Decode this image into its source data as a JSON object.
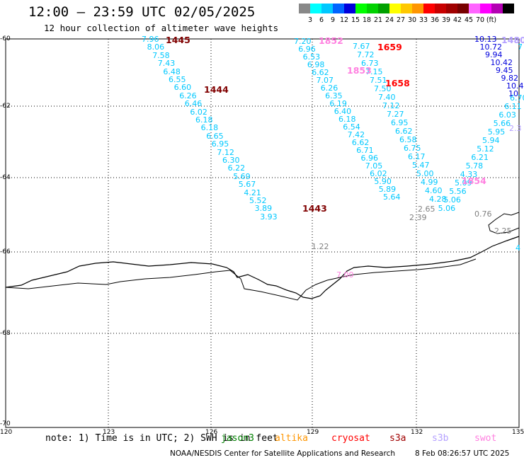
{
  "title": "12:00 – 23:59 UTC 02/05/2025",
  "subtitle": "12 hour collection of altimeter wave heights",
  "legend": {
    "colors": [
      "#888888",
      "#00ffff",
      "#00c8ff",
      "#0064ff",
      "#0000dc",
      "#00ff00",
      "#00d200",
      "#00a000",
      "#ffff00",
      "#ffc800",
      "#ff9600",
      "#ff0000",
      "#c80000",
      "#a00000",
      "#780000",
      "#ff64ff",
      "#ff00ff",
      "#b400b4",
      "#000000"
    ],
    "labels": [
      "3",
      "6",
      "9",
      "12",
      "15",
      "18",
      "21",
      "24",
      "27",
      "30",
      "33",
      "36",
      "39",
      "42",
      "45",
      "70",
      "(ft)"
    ]
  },
  "axes": {
    "lat_labels": [
      "-60",
      "-62",
      "-64",
      "-66",
      "-68",
      "-70"
    ],
    "lon_labels": [
      "120",
      "123",
      "126",
      "129",
      "132",
      "135"
    ]
  },
  "tracks": [
    {
      "color": "#00c8ff",
      "points": [
        {
          "v": "7.96"
        },
        {
          "v": "8.06"
        },
        {
          "v": "7.58"
        },
        {
          "v": "7.43"
        },
        {
          "v": "6.48"
        },
        {
          "v": "6.55"
        },
        {
          "v": "6.60"
        },
        {
          "v": "6.26"
        },
        {
          "v": "6.46"
        },
        {
          "v": "6.02"
        },
        {
          "v": "6.18"
        },
        {
          "v": "6.18"
        },
        {
          "v": "6.65"
        },
        {
          "v": "6.95"
        },
        {
          "v": "7.12"
        },
        {
          "v": "6.30"
        },
        {
          "v": "6.22"
        },
        {
          "v": "5.69"
        },
        {
          "v": "5.67"
        },
        {
          "v": "4.21"
        },
        {
          "v": "5.52"
        },
        {
          "v": "3.89"
        },
        {
          "v": "3.93"
        }
      ]
    },
    {
      "color": "#00c8ff",
      "points": [
        {
          "v": "7.20"
        },
        {
          "v": "6.96"
        },
        {
          "v": "6.53"
        },
        {
          "v": "6.98"
        },
        {
          "v": "6.62"
        },
        {
          "v": "7.07"
        },
        {
          "v": "6.26"
        },
        {
          "v": "6.35"
        },
        {
          "v": "6.19"
        },
        {
          "v": "6.40"
        },
        {
          "v": "6.18"
        },
        {
          "v": "6.54"
        },
        {
          "v": "7.42"
        },
        {
          "v": "6.62"
        },
        {
          "v": "6.71"
        },
        {
          "v": "6.96"
        },
        {
          "v": "7.05"
        },
        {
          "v": "6.02"
        },
        {
          "v": "5.90"
        },
        {
          "v": "5.89"
        },
        {
          "v": "5.64"
        }
      ]
    },
    {
      "color": "#00c8ff",
      "points": [
        {
          "v": "7.67"
        },
        {
          "v": "7.72"
        },
        {
          "v": "6.73"
        },
        {
          "v": "7.15"
        },
        {
          "v": "7.51"
        },
        {
          "v": "7.50"
        },
        {
          "v": "7.40"
        },
        {
          "v": "7.12"
        },
        {
          "v": "7.27"
        },
        {
          "v": "6.95"
        },
        {
          "v": "6.62"
        },
        {
          "v": "6.58"
        },
        {
          "v": "6.75"
        },
        {
          "v": "6.17"
        },
        {
          "v": "5.47"
        },
        {
          "v": "5.00"
        },
        {
          "v": "4.99"
        },
        {
          "v": "4.60"
        },
        {
          "v": "4.28"
        }
      ]
    },
    {
      "color": "#00c8ff",
      "points": [
        {
          "v": "6.70"
        },
        {
          "v": "6.11"
        },
        {
          "v": "6.03"
        },
        {
          "v": "5.66"
        },
        {
          "v": "5.95"
        },
        {
          "v": "5.94"
        },
        {
          "v": "5.12"
        },
        {
          "v": "6.21"
        },
        {
          "v": "5.78"
        },
        {
          "v": "4.33"
        },
        {
          "v": "5.09"
        },
        {
          "v": "5.56"
        },
        {
          "v": "5.06"
        },
        {
          "v": "5.06"
        }
      ]
    },
    {
      "color": "#0000dc",
      "points": [
        {
          "v": "10.13"
        },
        {
          "v": "10.72"
        },
        {
          "v": "9.94"
        },
        {
          "v": "10.42"
        },
        {
          "v": "9.45"
        },
        {
          "v": "9.82"
        },
        {
          "v": "10.4"
        },
        {
          "v": "10"
        }
      ]
    },
    {
      "color": "#808080",
      "points": [
        {
          "v": "2.65"
        },
        {
          "v": "2.39"
        },
        {
          "v": "0.76"
        },
        {
          "v": "2.25"
        },
        {
          "v": "1.22"
        }
      ]
    }
  ],
  "times": [
    {
      "t": "1445",
      "color": "#800000"
    },
    {
      "t": "1444",
      "color": "#800000"
    },
    {
      "t": "1443",
      "color": "#800000"
    },
    {
      "t": "1852",
      "color": "#ff80e0"
    },
    {
      "t": "1853",
      "color": "#ff80e0"
    },
    {
      "t": "1854",
      "color": "#ff80e0"
    },
    {
      "t": "1659",
      "color": "#ff0000"
    },
    {
      "t": "1658",
      "color": "#ff0000"
    },
    {
      "t": "1480",
      "color": "#b4a0ff"
    }
  ],
  "misc_values": [
    {
      "v": "7.00",
      "color": "#ff80e0"
    },
    {
      "v": "2.3",
      "color": "#b4a0ff"
    },
    {
      "v": "4",
      "color": "#00c8ff"
    },
    {
      "v": "7",
      "color": "#00c8ff"
    }
  ],
  "note": "note: 1) Time is in UTC; 2) SWH is in feet",
  "satellites": [
    {
      "name": "jason3",
      "color": "#008000"
    },
    {
      "name": "altika",
      "color": "#ff9600"
    },
    {
      "name": "cryosat",
      "color": "#ff0000"
    },
    {
      "name": "s3a",
      "color": "#a00000"
    },
    {
      "name": "s3b",
      "color": "#b4a0ff"
    },
    {
      "name": "swot",
      "color": "#ff80e0"
    }
  ],
  "credit": "NOAA/NESDIS Center for Satellite Applications and Research",
  "timestamp": "8 Feb 08:26:57 UTC 2025"
}
